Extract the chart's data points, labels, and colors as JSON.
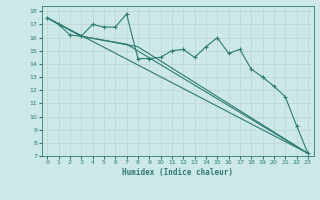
{
  "xlabel": "Humidex (Indice chaleur)",
  "bg_color": "#cce8e8",
  "grid_color": "#b8d8d8",
  "line_color": "#2d7a72",
  "xlim": [
    -0.5,
    23.5
  ],
  "ylim": [
    7,
    18.4
  ],
  "xticks": [
    0,
    1,
    2,
    3,
    4,
    5,
    6,
    7,
    8,
    9,
    10,
    11,
    12,
    13,
    14,
    15,
    16,
    17,
    18,
    19,
    20,
    21,
    22,
    23
  ],
  "yticks": [
    7,
    8,
    9,
    10,
    11,
    12,
    13,
    14,
    15,
    16,
    17,
    18
  ],
  "lines": [
    {
      "x": [
        0,
        1,
        2,
        3,
        4,
        5,
        6,
        7,
        8,
        9,
        10,
        11,
        12,
        13,
        14,
        15,
        16,
        17,
        18,
        19,
        20,
        21,
        22,
        23
      ],
      "y": [
        17.5,
        17.0,
        16.2,
        16.1,
        17.0,
        16.8,
        16.8,
        17.8,
        14.4,
        14.4,
        14.5,
        15.0,
        15.1,
        14.5,
        15.3,
        16.0,
        14.8,
        15.1,
        13.6,
        13.0,
        12.3,
        11.5,
        9.3,
        7.2
      ],
      "marker": true,
      "lw": 0.8
    },
    {
      "x": [
        0,
        3,
        8,
        23
      ],
      "y": [
        17.5,
        16.1,
        15.3,
        7.2
      ],
      "marker": false,
      "lw": 0.8
    },
    {
      "x": [
        0,
        23
      ],
      "y": [
        17.5,
        7.2
      ],
      "marker": false,
      "lw": 0.8
    },
    {
      "x": [
        0,
        3,
        7,
        23
      ],
      "y": [
        17.5,
        16.1,
        15.5,
        7.2
      ],
      "marker": false,
      "lw": 0.8
    }
  ]
}
